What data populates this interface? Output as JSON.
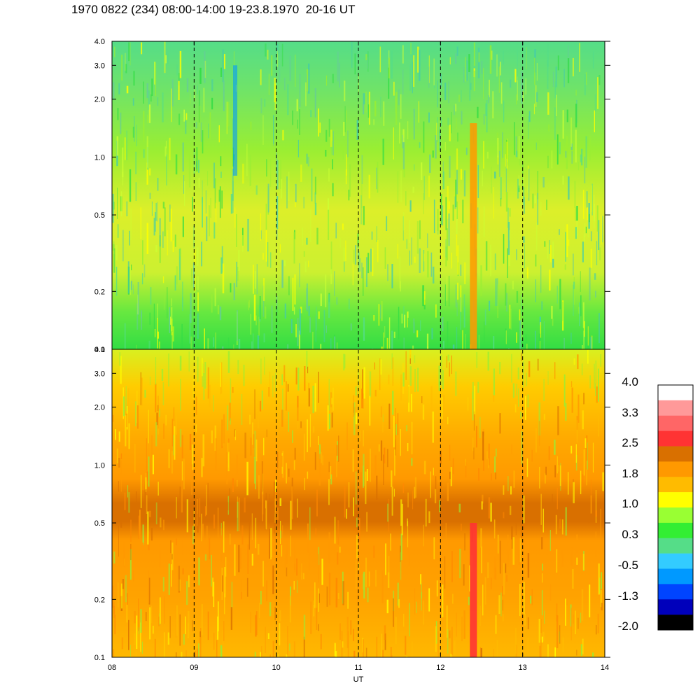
{
  "title": "1970 0822 (234) 08:00-14:00 19-23.8.1970  20-16 UT",
  "chart_data": [
    {
      "type": "heatmap",
      "panel": "upper",
      "x_range": [
        8,
        14
      ],
      "y_scale": "log",
      "y_range": [
        0.1,
        4.0
      ],
      "y_ticks": [
        "0.1",
        "0.2",
        "0.5",
        "1.0",
        "2.0",
        "3.0",
        "4.0"
      ],
      "y_tick_values": [
        0.1,
        0.2,
        0.5,
        1.0,
        2.0,
        3.0,
        4.0
      ],
      "dominant_colors": [
        "green",
        "yellow-green",
        "cyan"
      ],
      "notable_features": [
        {
          "x": 12.4,
          "description": "orange vertical stripe"
        },
        {
          "x": 9.5,
          "description": "blue streak at upper frequencies"
        }
      ]
    },
    {
      "type": "heatmap",
      "panel": "lower",
      "x_range": [
        8,
        14
      ],
      "y_scale": "log",
      "y_range": [
        0.1,
        4.0
      ],
      "y_ticks": [
        "0.1",
        "0.2",
        "0.5",
        "1.0",
        "2.0",
        "3.0",
        "4.0"
      ],
      "y_tick_values": [
        0.1,
        0.2,
        0.5,
        1.0,
        2.0,
        3.0,
        4.0
      ],
      "xlabel": "UT",
      "x_ticks": [
        "08",
        "09",
        "10",
        "11",
        "12",
        "13",
        "14"
      ],
      "x_tick_values": [
        8,
        9,
        10,
        11,
        12,
        13,
        14
      ],
      "dominant_colors": [
        "orange",
        "dark-orange band near 0.6",
        "yellow above 2.0"
      ],
      "notable_features": [
        {
          "x": 12.4,
          "description": "red vertical stripe at low frequencies"
        }
      ]
    }
  ],
  "dashed_hour_lines": [
    9,
    10,
    11,
    12,
    13
  ],
  "colorbar": {
    "labels": [
      "4.0",
      "3.3",
      "2.5",
      "1.8",
      "1.0",
      "0.3",
      "-0.5",
      "-1.3",
      "-2.0"
    ],
    "colors_top_to_bottom": [
      "#ffffff",
      "#ff9999",
      "#ff6666",
      "#ff3333",
      "#d97000",
      "#ff9900",
      "#ffbb00",
      "#ffff00",
      "#99ff33",
      "#33ee33",
      "#55dd88",
      "#33ccff",
      "#0099ff",
      "#0044ff",
      "#0000bb",
      "#000000"
    ]
  }
}
